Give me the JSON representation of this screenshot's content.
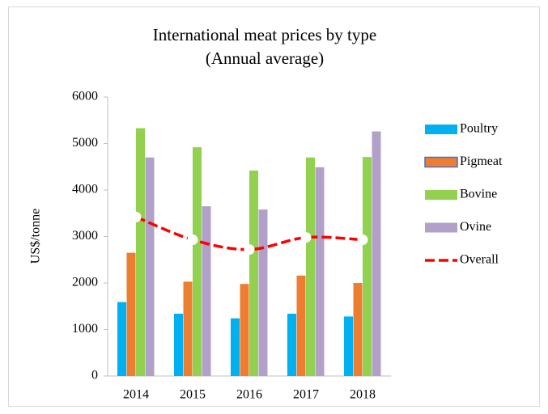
{
  "chart_data": {
    "type": "bar",
    "title": "International meat prices by type",
    "subtitle": "(Annual average)",
    "y_label": "US$/tonne",
    "categories": [
      "2014",
      "2015",
      "2016",
      "2017",
      "2018"
    ],
    "series": [
      {
        "name": "Poultry",
        "color": "#00b0f0",
        "values": [
          1590,
          1340,
          1240,
          1340,
          1280
        ]
      },
      {
        "name": "Pigmeat",
        "color": "#ed7d31",
        "values": [
          2650,
          2030,
          1980,
          2160,
          2000
        ]
      },
      {
        "name": "Bovine",
        "color": "#92d050",
        "values": [
          5330,
          4920,
          4420,
          4700,
          4710
        ]
      },
      {
        "name": "Ovine",
        "color": "#b1a0c7",
        "values": [
          4700,
          3650,
          3580,
          4490,
          5260
        ]
      },
      {
        "name": "Overall",
        "color": "#ff0000",
        "type": "line",
        "values": [
          3420,
          2930,
          2720,
          2980,
          2930
        ]
      }
    ],
    "ylim": [
      0,
      6000
    ],
    "yticks": [
      0,
      1000,
      2000,
      3000,
      4000,
      5000,
      6000
    ],
    "grid": false,
    "legend": "right"
  }
}
